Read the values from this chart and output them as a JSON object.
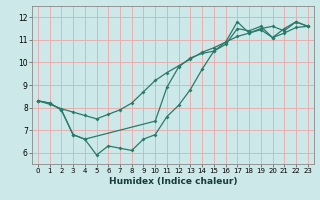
{
  "xlabel": "Humidex (Indice chaleur)",
  "background_color": "#cce8e8",
  "grid_color": "#e8b0b0",
  "line_color": "#2a7a6a",
  "xlim": [
    -0.5,
    23.5
  ],
  "ylim": [
    5.5,
    12.5
  ],
  "xticks": [
    0,
    1,
    2,
    3,
    4,
    5,
    6,
    7,
    8,
    9,
    10,
    11,
    12,
    13,
    14,
    15,
    16,
    17,
    18,
    19,
    20,
    21,
    22,
    23
  ],
  "yticks": [
    6,
    7,
    8,
    9,
    10,
    11,
    12
  ],
  "line1_x": [
    0,
    1,
    2,
    3,
    4,
    5,
    6,
    7,
    8,
    9,
    10,
    11,
    12,
    13,
    14,
    15,
    16,
    17,
    18,
    19,
    20,
    21,
    22,
    23
  ],
  "line1_y": [
    8.3,
    8.2,
    7.9,
    6.8,
    6.6,
    5.9,
    6.3,
    6.2,
    6.1,
    6.6,
    6.8,
    7.6,
    8.1,
    8.8,
    9.7,
    10.5,
    10.8,
    11.5,
    11.4,
    11.6,
    11.1,
    11.5,
    11.8,
    11.6
  ],
  "line2_x": [
    0,
    1,
    2,
    3,
    4,
    10,
    11,
    12,
    13,
    14,
    15,
    16,
    17,
    18,
    19,
    20,
    21,
    22,
    23
  ],
  "line2_y": [
    8.3,
    8.2,
    7.9,
    6.8,
    6.6,
    7.4,
    8.9,
    9.8,
    10.2,
    10.4,
    10.5,
    10.9,
    11.8,
    11.3,
    11.5,
    11.6,
    11.4,
    11.8,
    11.6
  ],
  "line3_x": [
    0,
    1,
    2,
    3,
    4,
    5,
    6,
    7,
    8,
    9,
    10,
    11,
    12,
    13,
    14,
    15,
    16,
    17,
    18,
    19,
    20,
    21,
    22,
    23
  ],
  "line3_y": [
    8.3,
    8.15,
    7.95,
    7.8,
    7.65,
    7.5,
    7.7,
    7.9,
    8.2,
    8.7,
    9.2,
    9.55,
    9.85,
    10.15,
    10.45,
    10.65,
    10.9,
    11.15,
    11.3,
    11.45,
    11.1,
    11.3,
    11.55,
    11.6
  ]
}
